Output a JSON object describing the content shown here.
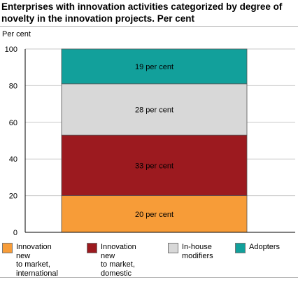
{
  "chart_data": {
    "type": "bar",
    "stacked": true,
    "title": "Enterprises with innovation activities categorized by degree of novelty in the innovation projects. Per cent",
    "ylabel": "Per cent",
    "ylim": [
      0,
      100
    ],
    "yticks": [
      "0",
      "20",
      "40",
      "60",
      "80",
      "100"
    ],
    "grid": true,
    "legend_position": "bottom",
    "series": [
      {
        "name": "Innovation new\nto market,\ninternational",
        "value": 20,
        "label": "20 per cent",
        "color": "#f79c38"
      },
      {
        "name": "Innovation new\nto market,\ndomestic",
        "value": 33,
        "label": "33 per cent",
        "color": "#9c1a1f"
      },
      {
        "name": "In-house\nmodifiers",
        "value": 28,
        "label": "28 per cent",
        "color": "#d8d8d8"
      },
      {
        "name": "Adopters",
        "value": 19,
        "label": "19 per cent",
        "color": "#12a09b"
      }
    ]
  }
}
